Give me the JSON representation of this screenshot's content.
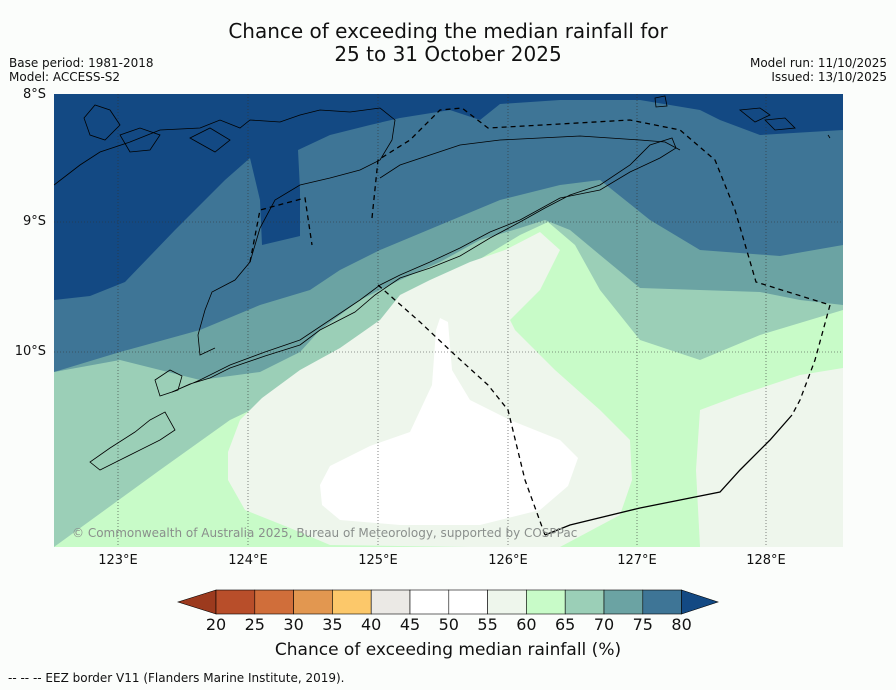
{
  "title": {
    "line1": "Chance of exceeding the median rainfall for",
    "line2": "25 to 31 October 2025"
  },
  "meta": {
    "base_period": "Base period: 1981-2018",
    "model": "Model: ACCESS-S2",
    "model_run": "Model run: 11/10/2025",
    "issued": "Issued: 13/10/2025"
  },
  "axes": {
    "lat_labels": [
      "8°S",
      "9°S",
      "10°S"
    ],
    "lon_labels": [
      "123°E",
      "124°E",
      "125°E",
      "126°E",
      "127°E",
      "128°E"
    ]
  },
  "copyright": "© Commonwealth of Australia 2025, Bureau of Meteorology, supported by COSPPac",
  "colorbar": {
    "ticks": [
      "20",
      "25",
      "30",
      "35",
      "40",
      "45",
      "50",
      "55",
      "60",
      "65",
      "70",
      "75",
      "80"
    ],
    "colors": [
      "#9c3a1e",
      "#b84e2a",
      "#d06e3a",
      "#e29750",
      "#fcc86a",
      "#ebe9e5",
      "#ffffff",
      "#ffffff",
      "#eef6ec",
      "#c8fbc8",
      "#9bcfb7",
      "#6ba3a3",
      "#3e7596",
      "#134983"
    ],
    "title": "Chance of exceeding median rainfall (%)"
  },
  "footnote": "-- -- -- EEZ border V11 (Flanders Marine Institute, 2019)."
}
